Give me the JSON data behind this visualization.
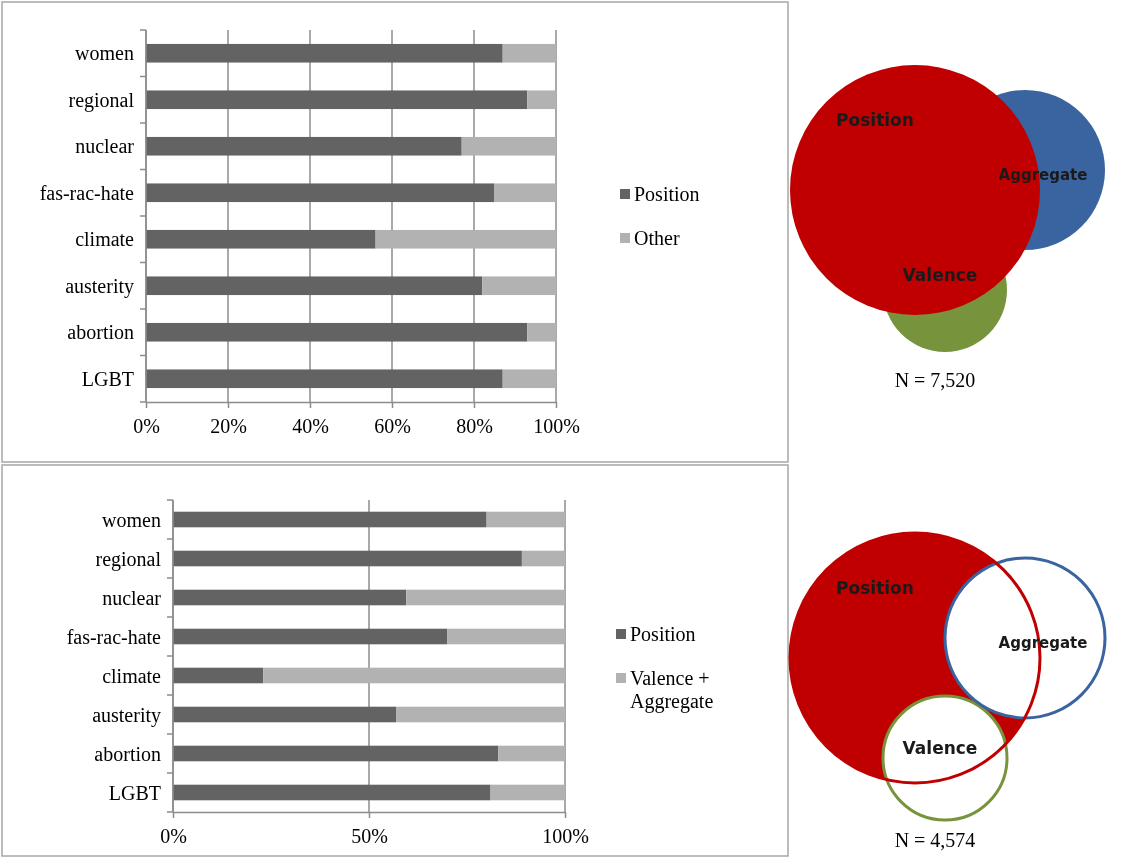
{
  "chart_data": [
    {
      "type": "bar",
      "orientation": "horizontal",
      "stacked": true,
      "categories": [
        "women",
        "regional",
        "nuclear",
        "fas-rac-hate",
        "climate",
        "austerity",
        "abortion",
        "LGBT"
      ],
      "series": [
        {
          "name": "Position",
          "color": "#636363",
          "values": [
            87,
            93,
            77,
            85,
            56,
            82,
            93,
            87
          ]
        },
        {
          "name": "Other",
          "color": "#b2b2b2",
          "values": [
            13,
            7,
            23,
            15,
            44,
            18,
            7,
            13
          ]
        }
      ],
      "xlim": [
        0,
        100
      ],
      "xticks": [
        {
          "value": 0,
          "label": "0%"
        },
        {
          "value": 20,
          "label": "20%"
        },
        {
          "value": 40,
          "label": "40%"
        },
        {
          "value": 60,
          "label": "60%"
        },
        {
          "value": 80,
          "label": "80%"
        },
        {
          "value": 100,
          "label": "100%"
        }
      ],
      "grid": "x",
      "legend": "right",
      "annotations": [
        "Position",
        "Aggregate",
        "Valence",
        "N = 7,520"
      ]
    },
    {
      "type": "bar",
      "orientation": "horizontal",
      "stacked": true,
      "categories": [
        "women",
        "regional",
        "nuclear",
        "fas-rac-hate",
        "climate",
        "austerity",
        "abortion",
        "LGBT"
      ],
      "series": [
        {
          "name": "Position",
          "color": "#636363",
          "values": [
            80,
            89,
            59.5,
            70,
            23,
            57,
            83,
            81
          ]
        },
        {
          "name": "Valence + Aggregate",
          "color": "#b2b2b2",
          "values": [
            20,
            11,
            40.5,
            30,
            77,
            43,
            17,
            19
          ]
        }
      ],
      "xlim": [
        0,
        100
      ],
      "xticks": [
        {
          "value": 0,
          "label": "0%"
        },
        {
          "value": 50,
          "label": "50%"
        },
        {
          "value": 100,
          "label": "100%"
        }
      ],
      "grid": "x",
      "legend": "right",
      "annotations": [
        "Position",
        "Aggregate",
        "Valence",
        "N = 4,574"
      ]
    }
  ]
}
